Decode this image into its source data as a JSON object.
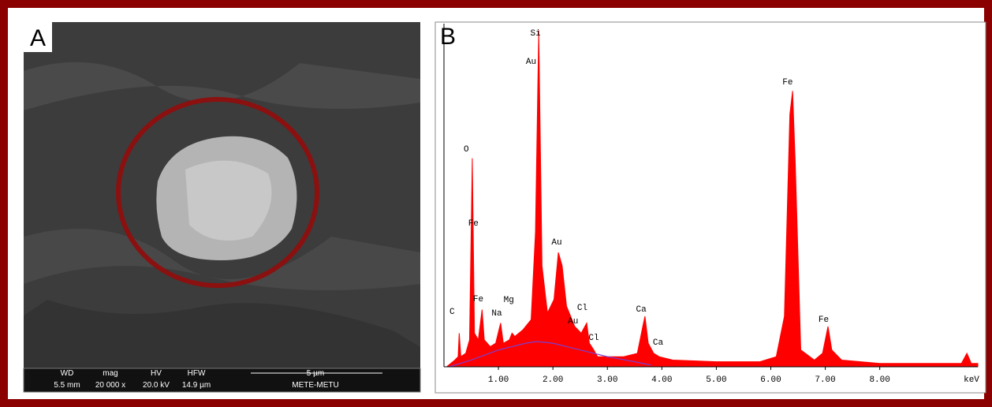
{
  "panels": {
    "a": "A",
    "b": "B"
  },
  "sem_info": {
    "wd_label": "WD",
    "wd": "5.5 mm",
    "mag_label": "mag",
    "mag": "20 000 x",
    "hv_label": "HV",
    "hv": "20.0 kV",
    "hfw_label": "HFW",
    "hfw": "14.9 µm",
    "scale": "5 µm",
    "operator": "METE-METU"
  },
  "chart_data": {
    "type": "area",
    "x_label": "keV",
    "xlim": [
      0,
      9.8
    ],
    "xticks": [
      {
        "value": 1,
        "label": "1.00"
      },
      {
        "value": 2,
        "label": "2.00"
      },
      {
        "value": 3,
        "label": "3.00"
      },
      {
        "value": 4,
        "label": "4.00"
      },
      {
        "value": 5,
        "label": "5.00"
      },
      {
        "value": 6,
        "label": "6.00"
      },
      {
        "value": 7,
        "label": "7.00"
      },
      {
        "value": 8,
        "label": "8.00"
      }
    ],
    "ylim": [
      0,
      102
    ],
    "series": [
      {
        "color": "#ff0000",
        "x": [
          0.05,
          0.2,
          0.26,
          0.28,
          0.31,
          0.4,
          0.47,
          0.52,
          0.56,
          0.63,
          0.7,
          0.74,
          0.85,
          0.95,
          1.04,
          1.09,
          1.2,
          1.25,
          1.3,
          1.45,
          1.6,
          1.68,
          1.74,
          1.8,
          1.9,
          2.02,
          2.1,
          2.17,
          2.25,
          2.4,
          2.52,
          2.62,
          2.67,
          2.75,
          2.82,
          3.0,
          3.3,
          3.55,
          3.65,
          3.69,
          3.75,
          3.85,
          3.95,
          4.2,
          5.0,
          5.8,
          6.1,
          6.25,
          6.35,
          6.4,
          6.45,
          6.55,
          6.8,
          6.95,
          7.05,
          7.12,
          7.3,
          8.0,
          9.0,
          9.5,
          9.6,
          9.68,
          9.8
        ],
        "values": [
          0,
          2,
          3,
          10,
          3,
          4,
          8,
          62,
          10,
          8,
          17,
          8,
          6,
          7,
          13,
          7,
          8,
          10,
          9,
          11,
          14,
          40,
          100,
          30,
          16,
          20,
          34,
          30,
          18,
          12,
          10,
          13,
          7,
          5,
          3,
          3,
          3,
          4,
          12,
          15,
          7,
          4,
          3,
          2,
          1.5,
          1.5,
          3,
          15,
          75,
          82,
          60,
          5,
          2,
          4,
          12,
          5,
          2,
          1,
          1,
          1,
          4,
          1,
          1
        ]
      },
      {
        "color": "#7a3fd0",
        "x": [
          0.1,
          0.5,
          1,
          1.5,
          1.7,
          2,
          2.5,
          3,
          3.5,
          3.8
        ],
        "values": [
          0,
          2,
          5,
          7,
          7.5,
          7,
          5,
          3,
          1.5,
          0.5
        ]
      }
    ],
    "annotations": [
      {
        "text": "Si",
        "x": 1.68,
        "y": 98.5
      },
      {
        "text": "Au",
        "x": 1.6,
        "y": 90
      },
      {
        "text": "O",
        "x": 0.41,
        "y": 64
      },
      {
        "text": "Fe",
        "x": 0.54,
        "y": 42
      },
      {
        "text": "Fe",
        "x": 0.63,
        "y": 19.5
      },
      {
        "text": "Mg",
        "x": 1.19,
        "y": 19.2
      },
      {
        "text": "Na",
        "x": 0.97,
        "y": 15.2
      },
      {
        "text": "C",
        "x": 0.15,
        "y": 15.7
      },
      {
        "text": "Au",
        "x": 2.07,
        "y": 36.3
      },
      {
        "text": "Cl",
        "x": 2.54,
        "y": 16.9
      },
      {
        "text": "Au",
        "x": 2.37,
        "y": 12.9
      },
      {
        "text": "Cl",
        "x": 2.75,
        "y": 8
      },
      {
        "text": "Ca",
        "x": 3.62,
        "y": 16.4
      },
      {
        "text": "Ca",
        "x": 3.93,
        "y": 6.6
      },
      {
        "text": "Fe",
        "x": 6.31,
        "y": 84
      },
      {
        "text": "Fe",
        "x": 6.97,
        "y": 13.4
      }
    ]
  }
}
